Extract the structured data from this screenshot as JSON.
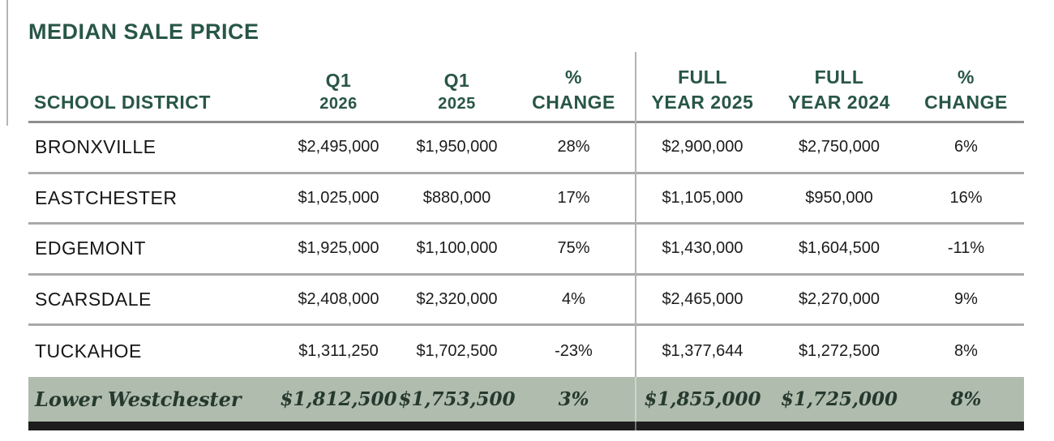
{
  "title": "MEDIAN SALE PRICE",
  "colors": {
    "accent_green": "#285646",
    "footer_bg": "#afbcae",
    "footer_text": "#25392d",
    "bar_black": "#1d1d1d",
    "line_gray": "#a9a9a9"
  },
  "table": {
    "header": [
      {
        "line1": "SCHOOL DISTRICT",
        "line2": ""
      },
      {
        "line1": "Q1",
        "line2": "2026"
      },
      {
        "line1": "Q1",
        "line2": "2025"
      },
      {
        "line1": "%",
        "line2": "CHANGE"
      },
      {
        "line1": "FULL",
        "line2": "YEAR 2025"
      },
      {
        "line1": "FULL",
        "line2": "YEAR 2024"
      },
      {
        "line1": "%",
        "line2": "CHANGE"
      }
    ],
    "rows": [
      {
        "district": "BRONXVILLE",
        "q1_2026": "$2,495,000",
        "q1_2025": "$1,950,000",
        "q_change": "28%",
        "fy_2025": "$2,900,000",
        "fy_2024": "$2,750,000",
        "fy_change": "6%"
      },
      {
        "district": "EASTCHESTER",
        "q1_2026": "$1,025,000",
        "q1_2025": "$880,000",
        "q_change": "17%",
        "fy_2025": "$1,105,000",
        "fy_2024": "$950,000",
        "fy_change": "16%"
      },
      {
        "district": "EDGEMONT",
        "q1_2026": "$1,925,000",
        "q1_2025": "$1,100,000",
        "q_change": "75%",
        "fy_2025": "$1,430,000",
        "fy_2024": "$1,604,500",
        "fy_change": "-11%"
      },
      {
        "district": "SCARSDALE",
        "q1_2026": "$2,408,000",
        "q1_2025": "$2,320,000",
        "q_change": "4%",
        "fy_2025": "$2,465,000",
        "fy_2024": "$2,270,000",
        "fy_change": "9%"
      },
      {
        "district": "TUCKAHOE",
        "q1_2026": "$1,311,250",
        "q1_2025": "$1,702,500",
        "q_change": "-23%",
        "fy_2025": "$1,377,644",
        "fy_2024": "$1,272,500",
        "fy_change": "8%"
      }
    ],
    "footer": {
      "district": "Lower Westchester",
      "q1_2026": "$1,812,500",
      "q1_2025": "$1,753,500",
      "q_change": "3%",
      "fy_2025": "$1,855,000",
      "fy_2024": "$1,725,000",
      "fy_change": "8%"
    }
  }
}
